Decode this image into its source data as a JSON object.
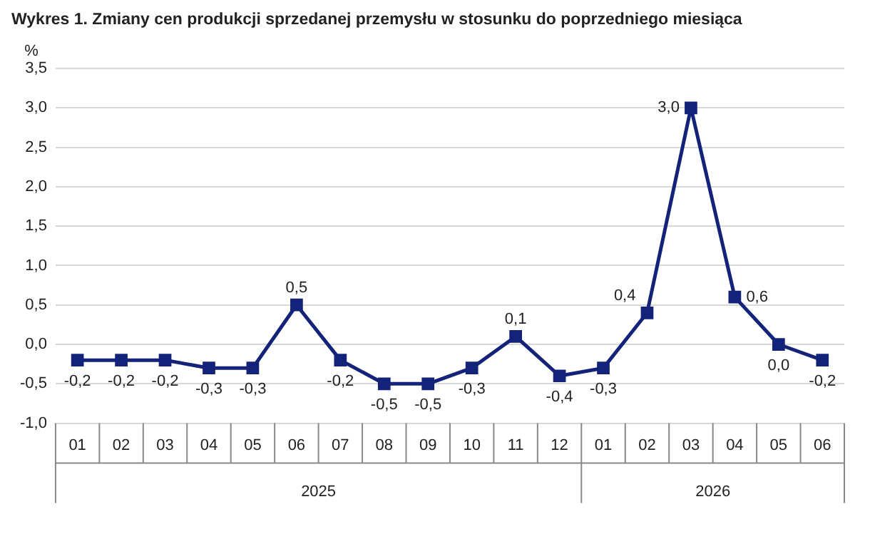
{
  "chart_data": {
    "type": "line",
    "title": "Wykres 1. Zmiany cen produkcji sprzedanej przemysłu w stosunku do poprzedniego miesiąca",
    "ylabel": "%",
    "categories": [
      "01",
      "02",
      "03",
      "04",
      "05",
      "06",
      "07",
      "08",
      "09",
      "10",
      "11",
      "12",
      "01",
      "02",
      "03",
      "04",
      "05",
      "06"
    ],
    "annotations": [
      "2025",
      "2026"
    ],
    "series": [
      {
        "color": "#13237a",
        "values": [
          -0.2,
          -0.2,
          -0.2,
          -0.3,
          -0.3,
          0.5,
          -0.2,
          -0.5,
          -0.5,
          -0.3,
          0.1,
          -0.4,
          -0.3,
          0.4,
          3.0,
          0.6,
          0.0,
          -0.2
        ],
        "value_labels": [
          "-0,2",
          "-0,2",
          "-0,2",
          "-0,3",
          "-0,3",
          "0,5",
          "-0,2",
          "-0,5",
          "-0,5",
          "-0,3",
          "0,1",
          "-0,4",
          "-0,3",
          "0,4",
          "3,0",
          "0,6",
          "0,0",
          "-0,2"
        ]
      }
    ],
    "ylim": [
      -1,
      3.5
    ],
    "yticks": [
      {
        "value": -1,
        "label": "-1,0"
      },
      {
        "value": -0.5,
        "label": "-0,5"
      },
      {
        "value": 0,
        "label": "0,0"
      },
      {
        "value": 0.5,
        "label": "0,5"
      },
      {
        "value": 1,
        "label": "1,0"
      },
      {
        "value": 1.5,
        "label": "1,5"
      },
      {
        "value": 2,
        "label": "2,0"
      },
      {
        "value": 2.5,
        "label": "2,5"
      },
      {
        "value": 3,
        "label": "3,0"
      },
      {
        "value": 3.5,
        "label": "3,5"
      }
    ],
    "grid": "y",
    "marker": "square",
    "line_style": "solid",
    "legend": false
  }
}
